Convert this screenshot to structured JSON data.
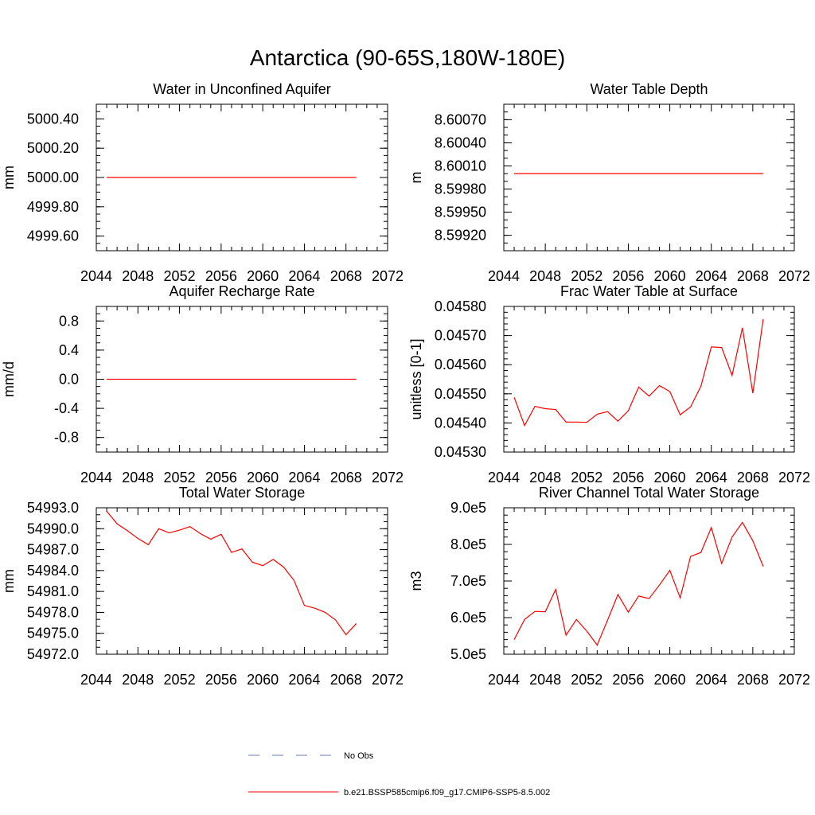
{
  "figure": {
    "title": "Antarctica (90-65S,180W-180E)"
  },
  "colors": {
    "model": "#ff0000",
    "obs": "#6b78b4",
    "axis": "#000000"
  },
  "legend": {
    "items": [
      {
        "label": "No Obs",
        "style": "dashed",
        "color": "#6b78b4"
      },
      {
        "label": "b.e21.BSSP585cmip6.f09_g17.CMIP6-SSP5-8.5.002",
        "style": "solid",
        "color": "#ff0000"
      }
    ]
  },
  "chart_data": [
    {
      "type": "line",
      "title": "Water in Unconfined Aquifer",
      "ylabel": "mm",
      "xlim": [
        2044,
        2072
      ],
      "xticks": [
        2044,
        2048,
        2052,
        2056,
        2060,
        2064,
        2068,
        2072
      ],
      "xtick_labels": [
        "2044",
        "2048",
        "2052",
        "2056",
        "2060",
        "2064",
        "2068",
        "2072"
      ],
      "ylim": [
        4999.5,
        5000.5
      ],
      "yticks": [
        4999.6,
        4999.8,
        5000.0,
        5000.2,
        5000.4
      ],
      "ytick_labels": [
        "4999.60",
        "4999.80",
        "5000.00",
        "5000.20",
        "5000.40"
      ],
      "ymin_step": 0.05,
      "series": [
        {
          "x": [
            2045,
            2069
          ],
          "y": [
            5000.0,
            5000.0
          ]
        }
      ]
    },
    {
      "type": "line",
      "title": "Water Table Depth",
      "ylabel": "m",
      "xlim": [
        2044,
        2072
      ],
      "xticks": [
        2044,
        2048,
        2052,
        2056,
        2060,
        2064,
        2068,
        2072
      ],
      "xtick_labels": [
        "2044",
        "2048",
        "2052",
        "2056",
        "2060",
        "2064",
        "2068",
        "2072"
      ],
      "ylim": [
        8.599,
        8.6009
      ],
      "yticks": [
        8.5992,
        8.5995,
        8.5998,
        8.6001,
        8.6004,
        8.6007
      ],
      "ytick_labels": [
        "8.59920",
        "8.59950",
        "8.59980",
        "8.60010",
        "8.60040",
        "8.60070"
      ],
      "ymin_step": 0.0001,
      "series": [
        {
          "x": [
            2045,
            2069
          ],
          "y": [
            8.6,
            8.6
          ]
        }
      ]
    },
    {
      "type": "line",
      "title": "Aquifer Recharge Rate",
      "ylabel": "mm/d",
      "xlim": [
        2044,
        2072
      ],
      "xticks": [
        2044,
        2048,
        2052,
        2056,
        2060,
        2064,
        2068,
        2072
      ],
      "xtick_labels": [
        "2044",
        "2048",
        "2052",
        "2056",
        "2060",
        "2064",
        "2068",
        "2072"
      ],
      "ylim": [
        -1.0,
        1.0
      ],
      "yticks": [
        -0.8,
        -0.4,
        0.0,
        0.4,
        0.8
      ],
      "ytick_labels": [
        "-0.8",
        "-0.4",
        "0.0",
        "0.4",
        "0.8"
      ],
      "ymin_step": 0.1,
      "series": [
        {
          "x": [
            2045,
            2069
          ],
          "y": [
            0.0,
            0.0
          ]
        }
      ]
    },
    {
      "type": "line",
      "title": "Frac Water Table at Surface",
      "ylabel": "unitless [0-1]",
      "xlim": [
        2044,
        2072
      ],
      "xticks": [
        2044,
        2048,
        2052,
        2056,
        2060,
        2064,
        2068,
        2072
      ],
      "xtick_labels": [
        "2044",
        "2048",
        "2052",
        "2056",
        "2060",
        "2064",
        "2068",
        "2072"
      ],
      "ylim": [
        0.0453,
        0.0458
      ],
      "yticks": [
        0.0453,
        0.0454,
        0.0455,
        0.0456,
        0.0457,
        0.0458
      ],
      "ytick_labels": [
        "0.04530",
        "0.04540",
        "0.04550",
        "0.04560",
        "0.04570",
        "0.04580"
      ],
      "ymin_step": 2e-05,
      "series": [
        {
          "x": [
            2045,
            2046,
            2047,
            2048,
            2049,
            2050,
            2051,
            2052,
            2053,
            2054,
            2055,
            2056,
            2057,
            2058,
            2059,
            2060,
            2061,
            2062,
            2063,
            2064,
            2065,
            2066,
            2067,
            2068,
            2069
          ],
          "y": [
            0.045488,
            0.045391,
            0.045457,
            0.045449,
            0.045446,
            0.045403,
            0.045403,
            0.045402,
            0.04543,
            0.045439,
            0.045406,
            0.045442,
            0.045523,
            0.045492,
            0.045528,
            0.045508,
            0.045428,
            0.045455,
            0.045526,
            0.045661,
            0.045659,
            0.045563,
            0.045727,
            0.045502,
            0.045756
          ]
        }
      ]
    },
    {
      "type": "line",
      "title": "Total Water Storage",
      "ylabel": "mm",
      "xlim": [
        2044,
        2072
      ],
      "xticks": [
        2044,
        2048,
        2052,
        2056,
        2060,
        2064,
        2068,
        2072
      ],
      "xtick_labels": [
        "2044",
        "2048",
        "2052",
        "2056",
        "2060",
        "2064",
        "2068",
        "2072"
      ],
      "ylim": [
        54972.0,
        54993.0
      ],
      "yticks": [
        54972.0,
        54975.0,
        54978.0,
        54981.0,
        54984.0,
        54987.0,
        54990.0,
        54993.0
      ],
      "ytick_labels": [
        "54972.0",
        "54975.0",
        "54978.0",
        "54981.0",
        "54984.0",
        "54987.0",
        "54990.0",
        "54993.0"
      ],
      "ymin_step": 1.0,
      "series": [
        {
          "x": [
            2045,
            2046,
            2047,
            2048,
            2049,
            2050,
            2051,
            2052,
            2053,
            2054,
            2055,
            2056,
            2057,
            2058,
            2059,
            2060,
            2061,
            2062,
            2063,
            2064,
            2065,
            2066,
            2067,
            2068,
            2069
          ],
          "y": [
            54992.5,
            54990.7,
            54989.7,
            54988.6,
            54987.7,
            54990.0,
            54989.4,
            54989.8,
            54990.3,
            54989.3,
            54988.5,
            54989.2,
            54986.6,
            54987.1,
            54985.2,
            54984.7,
            54985.6,
            54984.5,
            54982.6,
            54979.0,
            54978.6,
            54978.0,
            54976.9,
            54974.8,
            54976.4
          ]
        }
      ]
    },
    {
      "type": "line",
      "title": "River Channel Total Water Storage",
      "ylabel": "m3",
      "xlim": [
        2044,
        2072
      ],
      "xticks": [
        2044,
        2048,
        2052,
        2056,
        2060,
        2064,
        2068,
        2072
      ],
      "xtick_labels": [
        "2044",
        "2048",
        "2052",
        "2056",
        "2060",
        "2064",
        "2068",
        "2072"
      ],
      "ylim": [
        500000,
        900000
      ],
      "yticks": [
        500000,
        600000,
        700000,
        800000,
        900000
      ],
      "ytick_labels": [
        "5.0e5",
        "6.0e5",
        "7.0e5",
        "8.0e5",
        "9.0e5"
      ],
      "ymin_step": 20000,
      "series": [
        {
          "x": [
            2045,
            2046,
            2047,
            2048,
            2049,
            2050,
            2051,
            2052,
            2053,
            2054,
            2055,
            2056,
            2057,
            2058,
            2059,
            2060,
            2061,
            2062,
            2063,
            2064,
            2065,
            2066,
            2067,
            2068,
            2069
          ],
          "y": [
            540000,
            595000,
            617000,
            616000,
            677000,
            552000,
            595000,
            563000,
            525000,
            593000,
            663000,
            615000,
            659000,
            652000,
            689000,
            729000,
            654000,
            767000,
            778000,
            846000,
            748000,
            820000,
            860000,
            810000,
            740000
          ]
        }
      ]
    }
  ]
}
